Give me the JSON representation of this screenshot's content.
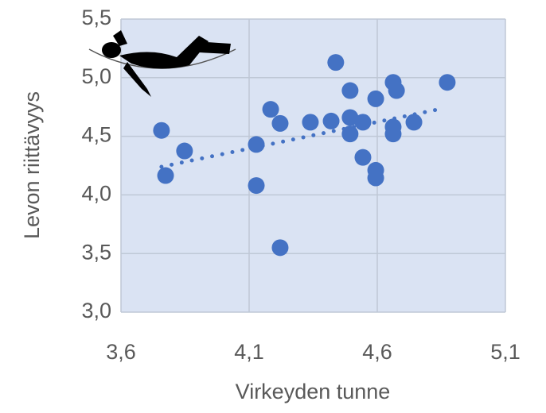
{
  "chart_data": {
    "type": "scatter",
    "x_label": "Virkeyden tunne",
    "y_label": "Levon riittävyys",
    "x": [
      3.758,
      3.774,
      3.848,
      4.128,
      4.128,
      4.184,
      4.221,
      4.221,
      4.339,
      4.42,
      4.438,
      4.494,
      4.494,
      4.494,
      4.544,
      4.544,
      4.594,
      4.594,
      4.594,
      4.662,
      4.662,
      4.662,
      4.675,
      4.743,
      4.873
    ],
    "values": [
      4.55,
      4.165,
      4.375,
      4.43,
      4.08,
      4.73,
      4.61,
      3.55,
      4.62,
      4.63,
      5.13,
      4.89,
      4.66,
      4.52,
      4.62,
      4.32,
      4.82,
      4.21,
      4.145,
      4.96,
      4.58,
      4.52,
      4.89,
      4.62,
      4.96
    ],
    "color": "#4472c4",
    "trendline": {
      "x": [
        3.758,
        4.861
      ],
      "y": [
        4.24,
        4.74
      ]
    },
    "xlim": [
      3.6,
      5.1
    ],
    "xticks": [
      {
        "value": 3.6,
        "label": "3,6"
      },
      {
        "value": 4.1,
        "label": "4,1"
      },
      {
        "value": 4.6,
        "label": "4,6"
      },
      {
        "value": 5.1,
        "label": "5,1"
      }
    ],
    "ylim": [
      3.0,
      5.5
    ],
    "yticks": [
      {
        "value": 3.0,
        "label": "3,0"
      },
      {
        "value": 3.5,
        "label": "3,5"
      },
      {
        "value": 4.0,
        "label": "4,0"
      },
      {
        "value": 4.5,
        "label": "4,5"
      },
      {
        "value": 5.0,
        "label": "5,0"
      },
      {
        "value": 5.5,
        "label": "5,5"
      }
    ],
    "grid": true
  }
}
